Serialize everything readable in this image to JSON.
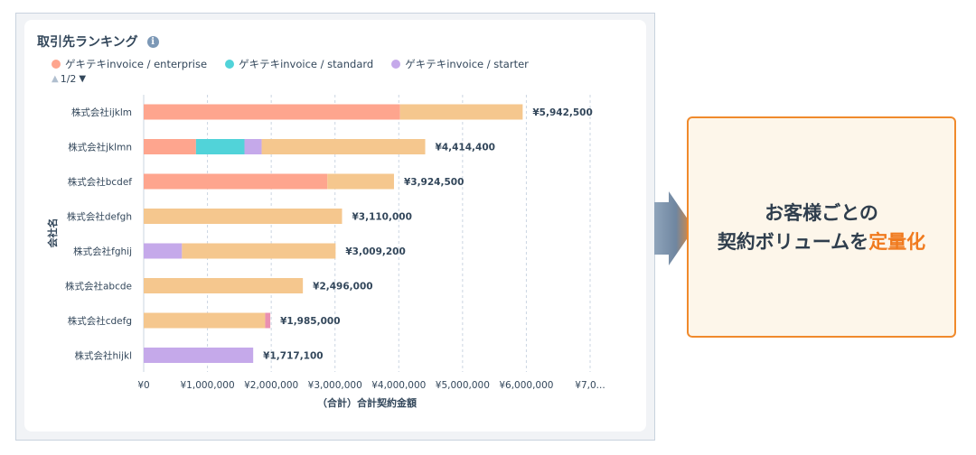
{
  "panel": {
    "title": "取引先ランキング",
    "info_icon": "info-icon",
    "pager": "1/2"
  },
  "legend": [
    {
      "label": "ゲキテキinvoice / enterprise",
      "color": "#fea58e"
    },
    {
      "label": "ゲキテキinvoice / standard",
      "color": "#51d3d9"
    },
    {
      "label": "ゲキテキinvoice / starter",
      "color": "#c5a9ea"
    }
  ],
  "chart_data": {
    "type": "bar",
    "orientation": "horizontal",
    "stacked": true,
    "xlabel": "（合計）合計契約金額",
    "ylabel": "会社名",
    "xlim": [
      0,
      7000000
    ],
    "x_ticks": [
      "¥0",
      "¥1,000,000",
      "¥2,000,000",
      "¥3,000,000",
      "¥4,000,000",
      "¥5,000,000",
      "¥6,000,000",
      "¥7,0..."
    ],
    "categories": [
      "株式会社ijklm",
      "株式会社jklmn",
      "株式会社bcdef",
      "株式会社defgh",
      "株式会社fghij",
      "株式会社abcde",
      "株式会社cdefg",
      "株式会社hijkl"
    ],
    "series": [
      {
        "name": "ゲキテキinvoice / enterprise",
        "color": "#fea58e",
        "values": [
          4020000,
          820000,
          2880000,
          0,
          0,
          0,
          0,
          0
        ]
      },
      {
        "name": "ゲキテキinvoice / standard",
        "color": "#51d3d9",
        "values": [
          0,
          760000,
          0,
          0,
          0,
          0,
          0,
          0
        ]
      },
      {
        "name": "ゲキテキinvoice / starter",
        "color": "#c5a9ea",
        "values": [
          0,
          270000,
          0,
          0,
          600000,
          0,
          0,
          1717100
        ]
      },
      {
        "color": "#f5c78e",
        "values": [
          1922500,
          2564400,
          1044500,
          3110000,
          2409200,
          2496000,
          1905000,
          0
        ]
      },
      {
        "color": "#ea90b1",
        "values": [
          0,
          0,
          0,
          0,
          0,
          0,
          80000,
          0
        ]
      }
    ],
    "totals": [
      "¥5,942,500",
      "¥4,414,400",
      "¥3,924,500",
      "¥3,110,000",
      "¥3,009,200",
      "¥2,496,000",
      "¥1,985,000",
      "¥1,717,100"
    ],
    "grid": "vertical-dashed",
    "legend_position": "top-left"
  },
  "callout": {
    "line1": "お客様ごとの",
    "line2_prefix": "契約ボリュームを",
    "line2_emphasis": "定量化"
  }
}
